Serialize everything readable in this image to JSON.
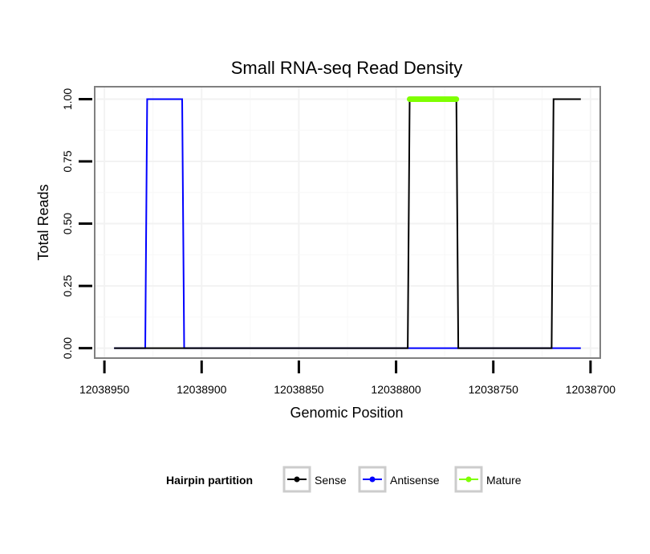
{
  "chart_data": {
    "type": "line",
    "title": "Small RNA-seq Read Density",
    "xlabel": "Genomic Position",
    "ylabel": "Total Reads",
    "x_reversed": true,
    "xlim": [
      12038955,
      12038695
    ],
    "ylim": [
      -0.04,
      1.05
    ],
    "x_ticks": [
      12038950,
      12038900,
      12038850,
      12038800,
      12038750,
      12038700
    ],
    "x_tick_labels": [
      "12038950",
      "12038900",
      "12038850",
      "12038800",
      "12038750",
      "12038700"
    ],
    "y_ticks": [
      0,
      0.25,
      0.5,
      0.75,
      1
    ],
    "y_tick_labels": [
      "0.00",
      "0.25",
      "0.50",
      "0.75",
      "1.00"
    ],
    "legend": {
      "title": "Hairpin partition",
      "position": "bottom",
      "entries": [
        {
          "name": "Sense",
          "color": "#000000"
        },
        {
          "name": "Antisense",
          "color": "#0000ff"
        },
        {
          "name": "Mature",
          "color": "#7fff00"
        }
      ]
    },
    "series": [
      {
        "name": "Antisense",
        "color": "#0000ff",
        "x": [
          12038945,
          12038929,
          12038928,
          12038910,
          12038909,
          12038794,
          12038793,
          12038766,
          12038765,
          12038705
        ],
        "values": [
          0,
          0,
          1,
          1,
          0,
          0,
          0,
          0,
          0,
          0
        ]
      },
      {
        "name": "Sense",
        "color": "#000000",
        "x": [
          12038945,
          12038794,
          12038793,
          12038769,
          12038768,
          12038720,
          12038719,
          12038705
        ],
        "values": [
          0,
          0,
          1,
          1,
          0,
          0,
          1,
          1
        ]
      },
      {
        "name": "Mature",
        "color": "#7fff00",
        "x": [
          12038793,
          12038769
        ],
        "values": [
          1,
          1
        ]
      }
    ]
  }
}
